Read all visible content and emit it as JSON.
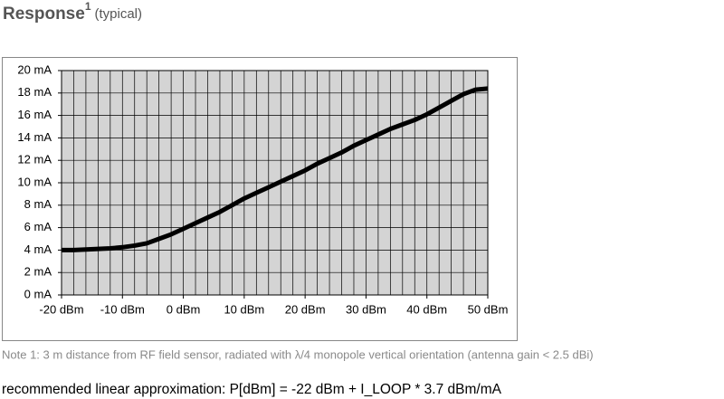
{
  "title": "Response",
  "title_sup": "1",
  "title_suffix": "(typical)",
  "note": "Note 1: 3 m distance from RF field sensor, radiated with λ/4 monopole vertical orientation (antenna gain < 2.5 dBi)",
  "formula": "recommended linear approximation: P[dBm] = -22 dBm + I_LOOP * 3.7 dBm/mA",
  "chart_data": {
    "type": "line",
    "x": [
      -20,
      -18,
      -16,
      -14,
      -12,
      -10,
      -8,
      -6,
      -4,
      -2,
      0,
      2,
      4,
      6,
      8,
      10,
      12,
      14,
      16,
      18,
      20,
      22,
      24,
      26,
      28,
      30,
      32,
      34,
      36,
      38,
      40,
      42,
      44,
      46,
      48,
      50
    ],
    "series": [
      {
        "color": "#000000",
        "values": [
          4.0,
          4.0,
          4.05,
          4.1,
          4.15,
          4.25,
          4.4,
          4.6,
          5.0,
          5.4,
          5.9,
          6.4,
          6.9,
          7.4,
          8.0,
          8.6,
          9.1,
          9.6,
          10.1,
          10.6,
          11.1,
          11.7,
          12.2,
          12.7,
          13.3,
          13.8,
          14.3,
          14.8,
          15.2,
          15.6,
          16.1,
          16.7,
          17.3,
          17.9,
          18.3,
          18.4
        ]
      }
    ],
    "xlim": [
      -20,
      50
    ],
    "xticks": [
      {
        "value": -20,
        "label": "-20 dBm"
      },
      {
        "value": -10,
        "label": "-10 dBm"
      },
      {
        "value": 0,
        "label": "0 dBm"
      },
      {
        "value": 10,
        "label": "10 dBm"
      },
      {
        "value": 20,
        "label": "20 dBm"
      },
      {
        "value": 30,
        "label": "30 dBm"
      },
      {
        "value": 40,
        "label": "40 dBm"
      },
      {
        "value": 50,
        "label": "50 dBm"
      }
    ],
    "xgrid": [
      -18,
      -16,
      -14,
      -12,
      -10,
      -8,
      -6,
      -4,
      -2,
      0,
      2,
      4,
      6,
      8,
      10,
      12,
      14,
      16,
      18,
      20,
      22,
      24,
      26,
      28,
      30,
      32,
      34,
      36,
      38,
      40,
      42,
      44,
      46,
      48,
      50
    ],
    "ylim": [
      0,
      20
    ],
    "yticks": [
      {
        "value": 0,
        "label": "0 mA"
      },
      {
        "value": 2,
        "label": "2 mA"
      },
      {
        "value": 4,
        "label": "4 mA"
      },
      {
        "value": 6,
        "label": "6 mA"
      },
      {
        "value": 8,
        "label": "8 mA"
      },
      {
        "value": 10,
        "label": "10 mA"
      },
      {
        "value": 12,
        "label": "12 mA"
      },
      {
        "value": 14,
        "label": "14 mA"
      },
      {
        "value": 16,
        "label": "16 mA"
      },
      {
        "value": 18,
        "label": "18 mA"
      },
      {
        "value": 20,
        "label": "20 mA"
      }
    ],
    "grid": true,
    "plot_background": "#d4d4d4"
  }
}
